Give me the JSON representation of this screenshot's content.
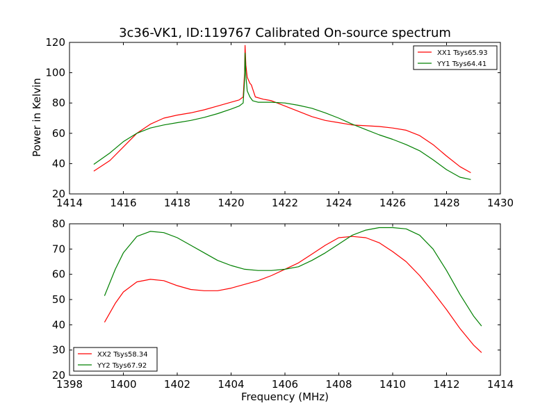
{
  "title": "3c36-VK1, ID:119767 Calibrated On-source spectrum",
  "ylabel": "Power in Kelvin",
  "xlabel": "Frequency (MHz)",
  "colors": {
    "red": "#ff0000",
    "green": "#008000"
  },
  "chart_data": [
    {
      "type": "line",
      "legend_placement": "top-right",
      "xlim": [
        1414,
        1430
      ],
      "ylim": [
        20,
        120
      ],
      "xticks": [
        "1414",
        "1416",
        "1418",
        "1420",
        "1422",
        "1424",
        "1426",
        "1428",
        "1430"
      ],
      "yticks": [
        "20",
        "40",
        "60",
        "80",
        "100",
        "120"
      ],
      "series": [
        {
          "name": "XX1 Tsys65.93",
          "color": "#ff0000",
          "x": [
            1414.9,
            1415.5,
            1416.0,
            1416.5,
            1417.0,
            1417.5,
            1418.0,
            1418.5,
            1419.0,
            1419.5,
            1420.0,
            1420.3,
            1420.45,
            1420.5,
            1420.52,
            1420.55,
            1420.6,
            1420.7,
            1420.75,
            1420.9,
            1421.2,
            1421.5,
            1422.0,
            1422.5,
            1423.0,
            1423.5,
            1424.0,
            1424.5,
            1425.0,
            1425.5,
            1426.0,
            1426.5,
            1427.0,
            1427.5,
            1428.0,
            1428.5,
            1428.9
          ],
          "y": [
            35,
            42,
            51,
            60,
            66,
            70,
            72,
            73.5,
            75.5,
            78,
            80.5,
            82,
            84,
            100,
            118,
            105,
            97,
            93,
            92,
            84,
            82.5,
            81.5,
            78,
            74.5,
            71,
            68.5,
            67,
            65.5,
            65,
            64.5,
            63.5,
            62,
            58.5,
            52.5,
            45,
            38,
            34
          ]
        },
        {
          "name": "YY1 Tsys64.41",
          "color": "#008000",
          "x": [
            1414.9,
            1415.5,
            1416.0,
            1416.5,
            1417.0,
            1417.5,
            1418.0,
            1418.5,
            1419.0,
            1419.5,
            1420.0,
            1420.3,
            1420.45,
            1420.5,
            1420.52,
            1420.55,
            1420.6,
            1420.7,
            1420.8,
            1421.0,
            1421.5,
            1422.0,
            1422.5,
            1423.0,
            1423.5,
            1424.0,
            1424.5,
            1425.0,
            1425.5,
            1426.0,
            1426.5,
            1427.0,
            1427.5,
            1428.0,
            1428.5,
            1428.9
          ],
          "y": [
            39.5,
            47,
            54.5,
            60,
            63.5,
            65.5,
            67,
            68.5,
            70.5,
            73,
            76,
            78,
            80,
            95,
            113,
            98,
            88,
            84,
            81.5,
            80.5,
            80.5,
            80,
            78.5,
            76.5,
            73.5,
            70,
            66,
            62.5,
            59,
            56,
            52.5,
            48.5,
            42.5,
            36,
            31,
            29.5
          ]
        }
      ]
    },
    {
      "type": "line",
      "legend_placement": "bottom-left",
      "xlim": [
        1398,
        1414
      ],
      "ylim": [
        20,
        80
      ],
      "xticks": [
        "1398",
        "1400",
        "1402",
        "1404",
        "1406",
        "1408",
        "1410",
        "1412",
        "1414"
      ],
      "yticks": [
        "20",
        "30",
        "40",
        "50",
        "60",
        "70",
        "80"
      ],
      "series": [
        {
          "name": "XX2 Tsys58.34",
          "color": "#ff0000",
          "x": [
            1399.3,
            1399.7,
            1400.0,
            1400.5,
            1401.0,
            1401.5,
            1402.0,
            1402.5,
            1403.0,
            1403.5,
            1404.0,
            1404.5,
            1405.0,
            1405.5,
            1406.0,
            1406.5,
            1407.0,
            1407.5,
            1408.0,
            1408.5,
            1409.0,
            1409.5,
            1410.0,
            1410.5,
            1411.0,
            1411.5,
            1412.0,
            1412.5,
            1413.0,
            1413.3
          ],
          "y": [
            41,
            48.5,
            53,
            57,
            58,
            57.5,
            55.5,
            54,
            53.5,
            53.5,
            54.5,
            56,
            57.5,
            59.5,
            62,
            64.5,
            68,
            71.5,
            74.5,
            75,
            74.5,
            72.5,
            69,
            65,
            59.5,
            53,
            46,
            38.5,
            32,
            29
          ]
        },
        {
          "name": "YY2 Tsys67.92",
          "color": "#008000",
          "x": [
            1399.3,
            1399.7,
            1400.0,
            1400.5,
            1401.0,
            1401.5,
            1402.0,
            1402.5,
            1403.0,
            1403.5,
            1404.0,
            1404.5,
            1405.0,
            1405.5,
            1406.0,
            1406.5,
            1407.0,
            1407.5,
            1408.0,
            1408.5,
            1409.0,
            1409.5,
            1410.0,
            1410.5,
            1411.0,
            1411.5,
            1412.0,
            1412.5,
            1413.0,
            1413.3
          ],
          "y": [
            51.5,
            62,
            68.5,
            75,
            77,
            76.5,
            74.5,
            71.5,
            68.5,
            65.5,
            63.5,
            62,
            61.5,
            61.5,
            62,
            63,
            65.5,
            68.5,
            72,
            75.5,
            77.5,
            78.5,
            78.5,
            78,
            75.5,
            70,
            61.5,
            52,
            43.5,
            39.5
          ]
        }
      ]
    }
  ]
}
